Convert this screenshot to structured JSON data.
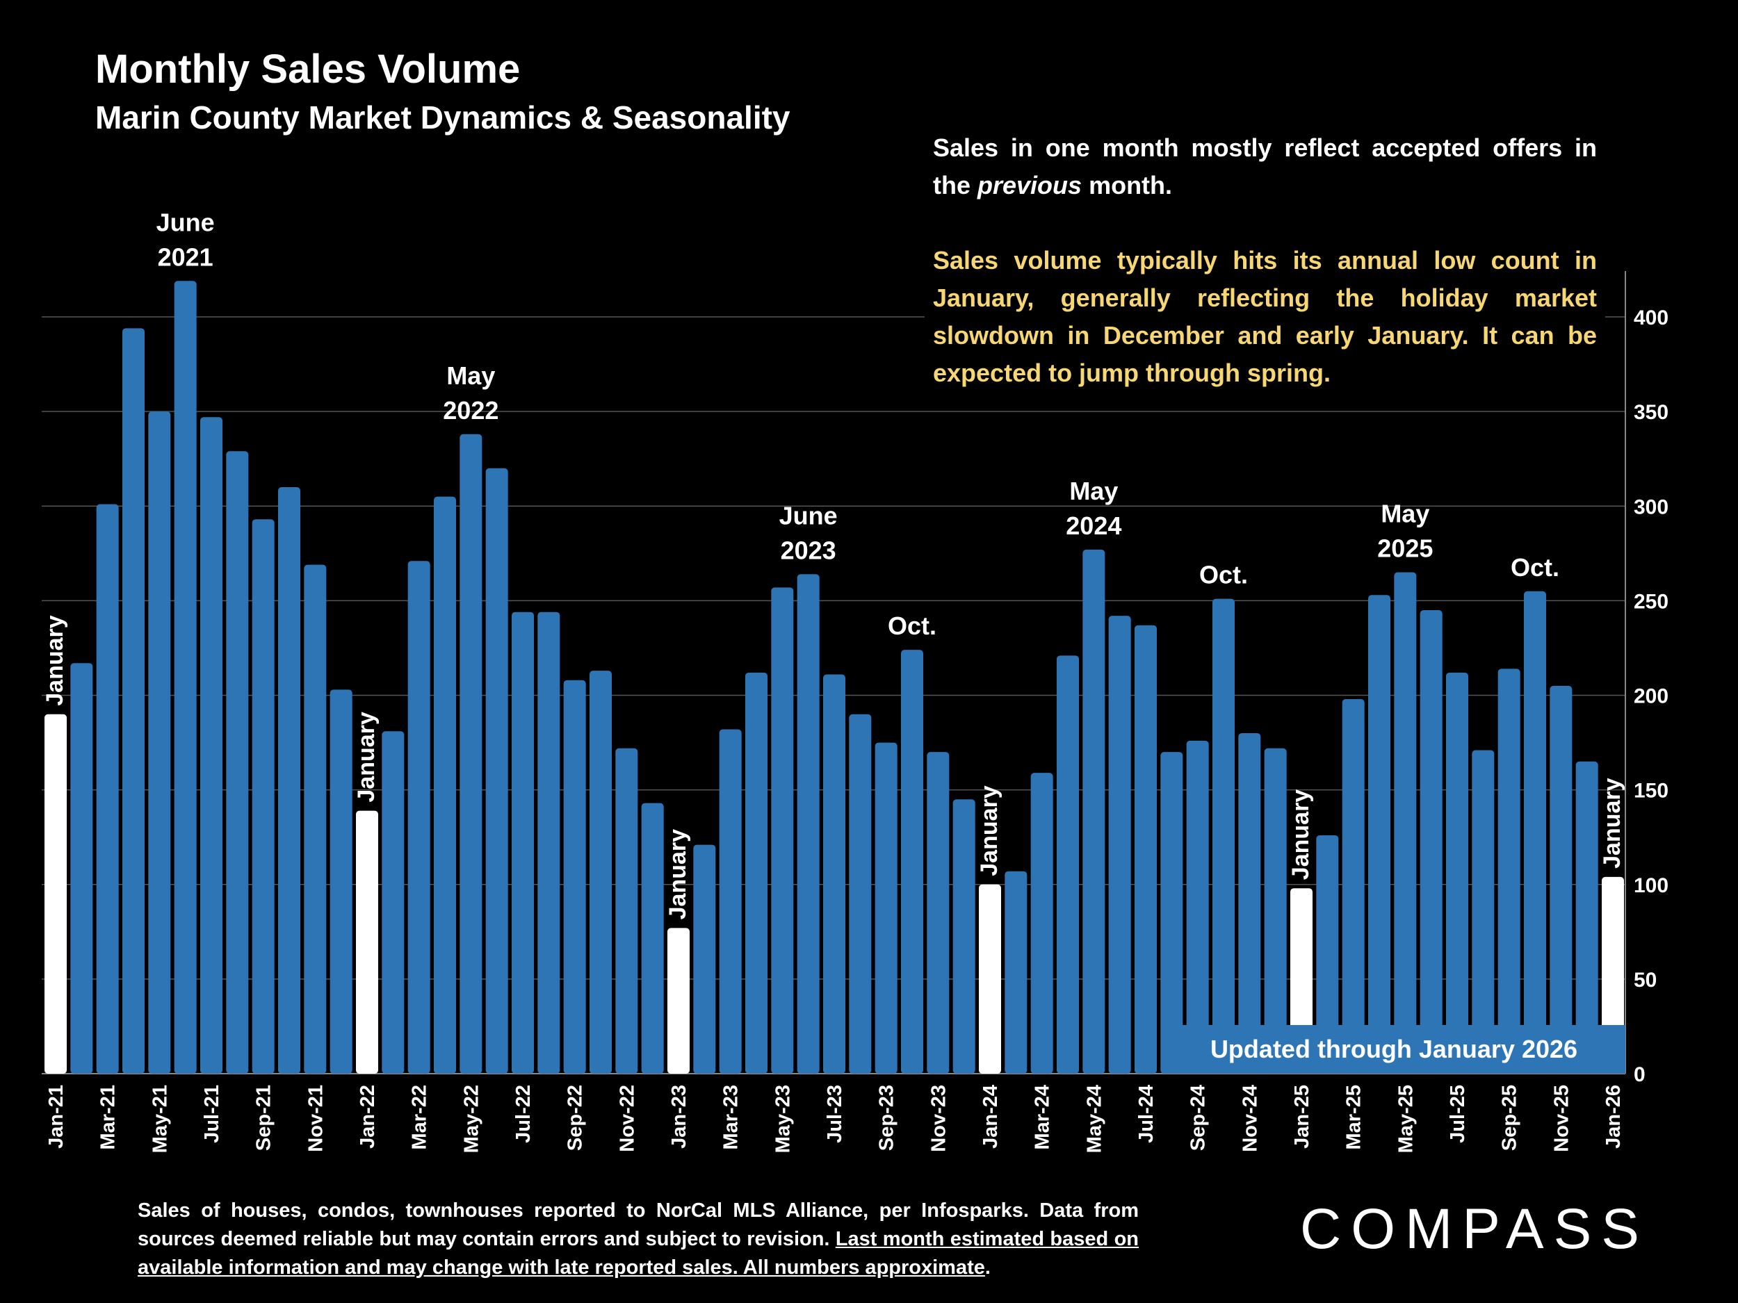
{
  "header": {
    "title": "Monthly Sales Volume",
    "subtitle": "Marin County Market Dynamics & Seasonality"
  },
  "notes": {
    "p1_before": "Sales in one month mostly reflect accepted offers in the ",
    "p1_italic": "previous",
    "p1_after": " month.",
    "p2": "Sales volume typically hits its annual low count in January, generally reflecting the holiday market slowdown in December and early January. It can be expected to jump through spring."
  },
  "updated_label": "Updated through January 2026",
  "footer": {
    "plain": "Sales of houses, condos, townhouses reported to NorCal MLS Alliance, per Infosparks. Data from sources deemed reliable but may contain errors and subject to revision. ",
    "underlined": "Last month estimated based on available information and may change with late reported sales. All numbers approximate",
    "end": "."
  },
  "logo": "COMPASS",
  "colors": {
    "bar": "#2e75b6",
    "january_bar": "#ffffff",
    "highlight_text": "#f7d774",
    "background": "#000000",
    "grid": "#555555"
  },
  "chart_data": {
    "type": "bar",
    "title": "Monthly Sales Volume",
    "subtitle": "Marin County Market Dynamics & Seasonality",
    "y_axis_position": "right",
    "ylim": [
      0,
      420
    ],
    "yticks": [
      0,
      50,
      100,
      150,
      200,
      250,
      300,
      350,
      400
    ],
    "grid": true,
    "categories": [
      "Jan-21",
      "Feb-21",
      "Mar-21",
      "Apr-21",
      "May-21",
      "Jun-21",
      "Jul-21",
      "Aug-21",
      "Sep-21",
      "Oct-21",
      "Nov-21",
      "Dec-21",
      "Jan-22",
      "Feb-22",
      "Mar-22",
      "Apr-22",
      "May-22",
      "Jun-22",
      "Jul-22",
      "Aug-22",
      "Sep-22",
      "Oct-22",
      "Nov-22",
      "Dec-22",
      "Jan-23",
      "Feb-23",
      "Mar-23",
      "Apr-23",
      "May-23",
      "Jun-23",
      "Jul-23",
      "Aug-23",
      "Sep-23",
      "Oct-23",
      "Nov-23",
      "Dec-23",
      "Jan-24",
      "Feb-24",
      "Mar-24",
      "Apr-24",
      "May-24",
      "Jun-24",
      "Jul-24",
      "Aug-24",
      "Sep-24",
      "Oct-24",
      "Nov-24",
      "Dec-24",
      "Jan-25",
      "Feb-25",
      "Mar-25",
      "Apr-25",
      "May-25",
      "Jun-25",
      "Jul-25",
      "Aug-25",
      "Sep-25",
      "Oct-25",
      "Nov-25",
      "Dec-25",
      "Jan-26"
    ],
    "values": [
      190,
      217,
      301,
      394,
      350,
      419,
      347,
      329,
      293,
      310,
      269,
      203,
      139,
      181,
      271,
      305,
      338,
      320,
      244,
      244,
      208,
      213,
      172,
      143,
      77,
      121,
      182,
      212,
      257,
      264,
      211,
      190,
      175,
      224,
      170,
      145,
      100,
      107,
      159,
      221,
      277,
      242,
      237,
      170,
      176,
      251,
      180,
      172,
      98,
      126,
      198,
      253,
      265,
      245,
      212,
      171,
      214,
      255,
      205,
      165,
      104
    ],
    "annotations": [
      {
        "category": "Jun-21",
        "lines": [
          "June",
          "2021"
        ]
      },
      {
        "category": "May-22",
        "lines": [
          "May",
          "2022"
        ]
      },
      {
        "category": "Jun-23",
        "lines": [
          "June",
          "2023"
        ]
      },
      {
        "category": "Oct-23",
        "lines": [
          "Oct."
        ]
      },
      {
        "category": "May-24",
        "lines": [
          "May",
          "2024"
        ]
      },
      {
        "category": "Oct-24",
        "lines": [
          "Oct."
        ]
      },
      {
        "category": "May-25",
        "lines": [
          "May",
          "2025"
        ]
      },
      {
        "category": "Oct-25",
        "lines": [
          "Oct."
        ]
      }
    ],
    "january_label": "January"
  }
}
